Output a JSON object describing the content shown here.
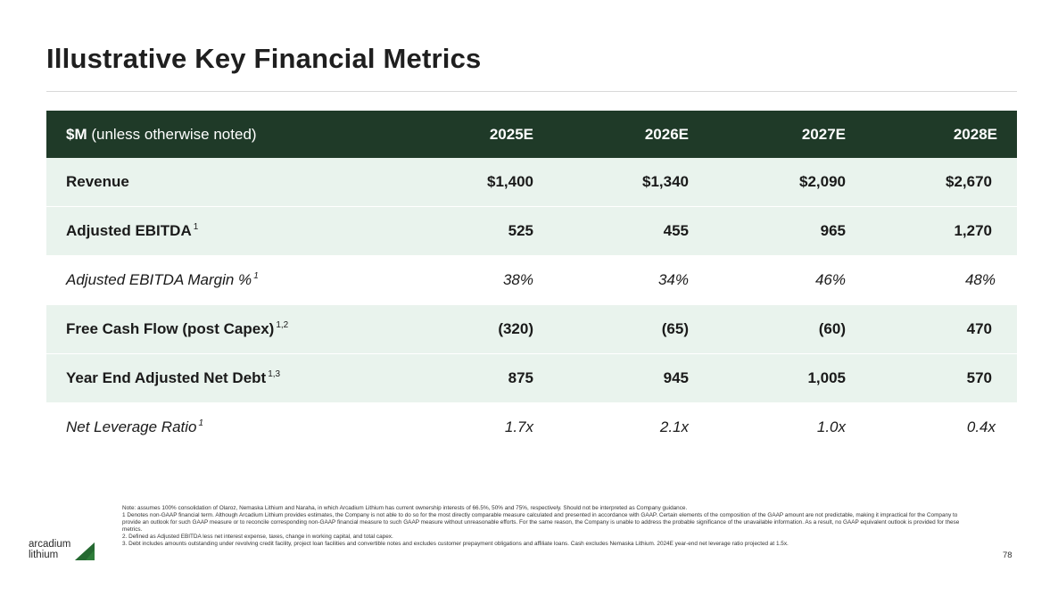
{
  "title": "Illustrative Key Financial Metrics",
  "table": {
    "header": {
      "unit_bold": "$M",
      "unit_rest": " (unless otherwise noted)",
      "years": [
        "2025E",
        "2026E",
        "2027E",
        "2028E"
      ]
    },
    "rows": [
      {
        "label": "Revenue",
        "sup": "",
        "values": [
          "$1,400",
          "$1,340",
          "$2,090",
          "$2,670"
        ]
      },
      {
        "label": "Adjusted EBITDA",
        "sup": "1",
        "values": [
          "525",
          "455",
          "965",
          "1,270"
        ]
      },
      {
        "label": "Adjusted EBITDA Margin %",
        "sup": "1",
        "values": [
          "38%",
          "34%",
          "46%",
          "48%"
        ]
      },
      {
        "label": "Free Cash Flow (post Capex)",
        "sup": "1,2",
        "values": [
          "(320)",
          "(65)",
          "(60)",
          "470"
        ]
      },
      {
        "label": "Year End Adjusted Net Debt",
        "sup": "1,3",
        "values": [
          "875",
          "945",
          "1,005",
          "570"
        ]
      },
      {
        "label": "Net Leverage Ratio",
        "sup": "1",
        "values": [
          "1.7x",
          "2.1x",
          "1.0x",
          "0.4x"
        ]
      }
    ]
  },
  "notes": [
    "Note: assumes 100% consolidation of Olaroz, Nemaska Lithium and Naraha, in which Arcadium Lithium has current ownership interests of 66.5%, 50% and 75%, respectively. Should not be interpreted as Company guidance.",
    "1  Denotes non-GAAP financial term. Although Arcadium Lithium provides estimates, the Company is not able to do so for the most directly comparable measure calculated and presented in accordance with GAAP.  Certain elements of the composition of the GAAP amount are not predictable, making it impractical for the Company to provide an outlook for such GAAP measure or to reconcile corresponding non-GAAP financial measure to such GAAP measure without unreasonable efforts.  For the same reason, the Company is unable to address the probable significance of the unavailable information.  As a result, no GAAP equivalent outlook is provided for these metrics.",
    "2. Defined as Adjusted EBITDA less net interest expense, taxes, change in working capital, and total capex.",
    "3. Debt includes amounts outstanding under revolving credit facility, project loan facilities and convertible notes and excludes customer prepayment obligations and affiliate loans. Cash excludes Nemaska Lithium. 2024E year-end net leverage ratio projected at 1.5x."
  ],
  "logo": {
    "line1": "arcadium",
    "line2": "lithium",
    "color": "#2e7d3a"
  },
  "page_number": "78",
  "colors": {
    "header_bg": "#1f3a28",
    "row_shade": "#e9f3ed"
  }
}
